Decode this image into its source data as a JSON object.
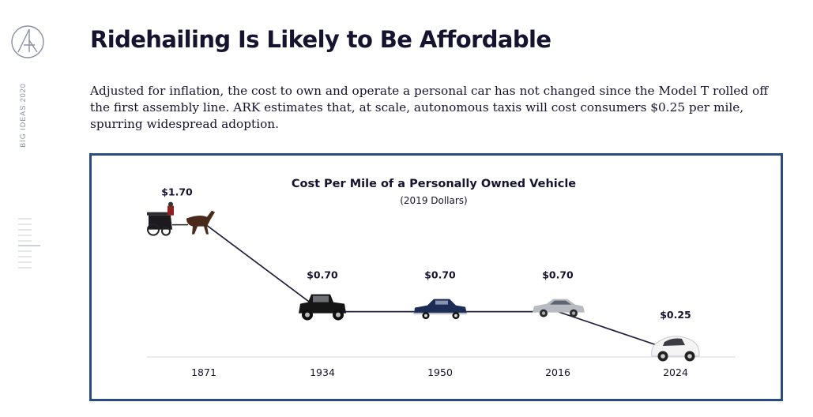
{
  "sidebar": {
    "label": "BIG IDEAS 2020",
    "logo_icon": "ark-logo-icon"
  },
  "header": {
    "title": "Ridehailing Is Likely to Be Affordable"
  },
  "body": {
    "description": "Adjusted for inflation, the cost to own and operate a personal car has not changed since the Model T rolled off the first assembly line. ARK estimates that, at scale, autonomous taxis will cost consumers $0.25 per mile, spurring widespread adoption."
  },
  "colors": {
    "text": "#15132e",
    "frame": "#2a4a80",
    "line": "#221f3d",
    "baseline": "#e4e4ea"
  },
  "chart_data": {
    "type": "line",
    "title": "Cost Per Mile of a Personally Owned Vehicle",
    "subtitle": "(2019 Dollars)",
    "xlabel": "",
    "ylabel": "",
    "ylim": [
      0,
      2
    ],
    "categories": [
      "1871",
      "1934",
      "1950",
      "2016",
      "2024"
    ],
    "series": [
      {
        "name": "Cost per mile",
        "values": [
          1.7,
          0.7,
          0.7,
          0.7,
          0.25
        ],
        "labels": [
          "$1.70",
          "$0.70",
          "$0.70",
          "$0.70",
          "$0.25"
        ],
        "icons": [
          "horse-carriage-icon",
          "vintage-car-icon",
          "classic-sedan-icon",
          "modern-sedan-icon",
          "autonomous-car-icon"
        ]
      }
    ],
    "grid": false,
    "legend": "none"
  }
}
